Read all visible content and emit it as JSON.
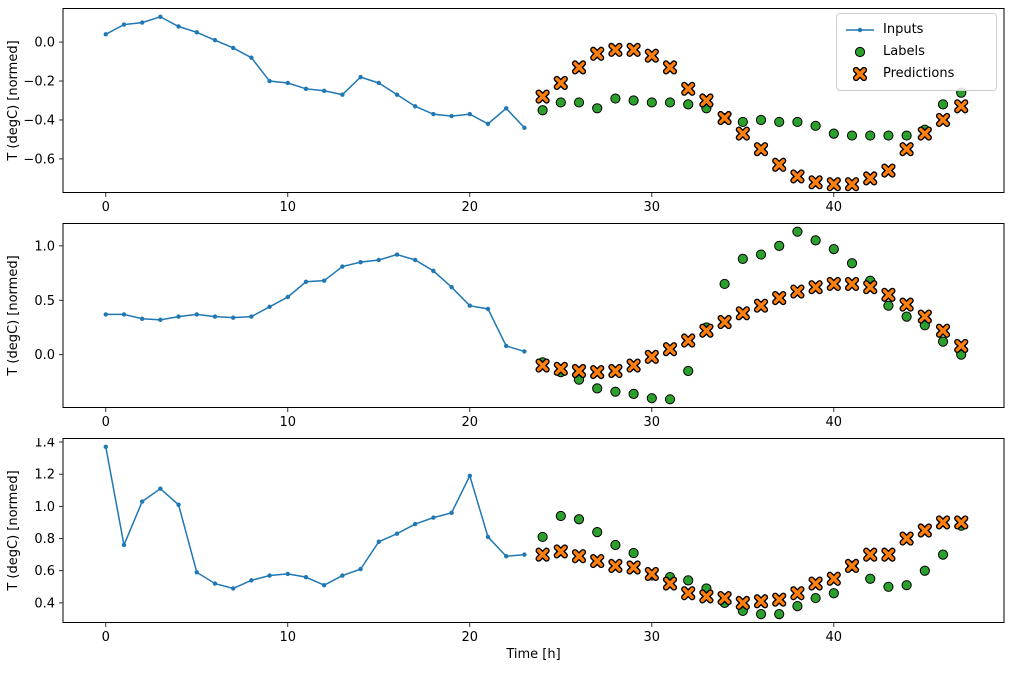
{
  "figure": {
    "background": "#ffffff",
    "xlabel": "Time [h]",
    "ylabel": "T (degC) [normed]",
    "legend": {
      "position": "upper right",
      "items": [
        {
          "label": "Inputs",
          "marker": "line-dot",
          "color": "#1f77b4"
        },
        {
          "label": "Labels",
          "marker": "circle",
          "color": "#2ca02c",
          "edge_color": "#000000"
        },
        {
          "label": "Predictions",
          "marker": "X",
          "color": "#ff7f0e",
          "edge_color": "#000000"
        }
      ]
    }
  },
  "chart_data": [
    {
      "type": "line",
      "title": "",
      "xlabel": "",
      "ylabel": "T (degC) [normed]",
      "xlim": [
        -2.35,
        49.35
      ],
      "ylim": [
        -0.775,
        0.175
      ],
      "xticks": [
        0,
        10,
        20,
        30,
        40
      ],
      "xticklabels": [
        "0",
        "10",
        "20",
        "30",
        "40"
      ],
      "yticks": [
        0.0,
        -0.2,
        -0.4,
        -0.6
      ],
      "yticklabels": [
        "0.0",
        "−0.2",
        "−0.4",
        "−0.6"
      ],
      "grid": false,
      "series": [
        {
          "name": "Inputs",
          "marker": "line-dot",
          "color": "#1f77b4",
          "x": [
            0,
            1,
            2,
            3,
            4,
            5,
            6,
            7,
            8,
            9,
            10,
            11,
            12,
            13,
            14,
            15,
            16,
            17,
            18,
            19,
            20,
            21,
            22,
            23
          ],
          "values": [
            0.04,
            0.09,
            0.1,
            0.13,
            0.08,
            0.05,
            0.01,
            -0.03,
            -0.08,
            -0.2,
            -0.21,
            -0.24,
            -0.25,
            -0.27,
            -0.18,
            -0.21,
            -0.27,
            -0.33,
            -0.37,
            -0.38,
            -0.37,
            -0.42,
            -0.34,
            -0.44
          ]
        },
        {
          "name": "Labels",
          "marker": "circle",
          "color": "#2ca02c",
          "x": [
            24,
            25,
            26,
            27,
            28,
            29,
            30,
            31,
            32,
            33,
            34,
            35,
            36,
            37,
            38,
            39,
            40,
            41,
            42,
            43,
            44,
            45,
            46,
            47
          ],
          "values": [
            -0.35,
            -0.31,
            -0.31,
            -0.34,
            -0.29,
            -0.3,
            -0.31,
            -0.31,
            -0.32,
            -0.34,
            -0.39,
            -0.41,
            -0.4,
            -0.41,
            -0.41,
            -0.43,
            -0.47,
            -0.48,
            -0.48,
            -0.48,
            -0.48,
            -0.45,
            -0.32,
            -0.26
          ]
        },
        {
          "name": "Predictions",
          "marker": "X",
          "color": "#ff7f0e",
          "x": [
            24,
            25,
            26,
            27,
            28,
            29,
            30,
            31,
            32,
            33,
            34,
            35,
            36,
            37,
            38,
            39,
            40,
            41,
            42,
            43,
            44,
            45,
            46,
            47
          ],
          "values": [
            -0.28,
            -0.21,
            -0.13,
            -0.06,
            -0.04,
            -0.04,
            -0.07,
            -0.13,
            -0.24,
            -0.3,
            -0.39,
            -0.47,
            -0.55,
            -0.63,
            -0.69,
            -0.72,
            -0.73,
            -0.73,
            -0.7,
            -0.66,
            -0.55,
            -0.47,
            -0.4,
            -0.33
          ]
        }
      ]
    },
    {
      "type": "line",
      "title": "",
      "xlabel": "",
      "ylabel": "T (degC) [normed]",
      "xlim": [
        -2.35,
        49.35
      ],
      "ylim": [
        -0.49,
        1.21
      ],
      "xticks": [
        0,
        10,
        20,
        30,
        40
      ],
      "xticklabels": [
        "0",
        "10",
        "20",
        "30",
        "40"
      ],
      "yticks": [
        0.0,
        0.5,
        1.0
      ],
      "yticklabels": [
        "0.0",
        "0.5",
        "1.0"
      ],
      "grid": false,
      "series": [
        {
          "name": "Inputs",
          "marker": "line-dot",
          "color": "#1f77b4",
          "x": [
            0,
            1,
            2,
            3,
            4,
            5,
            6,
            7,
            8,
            9,
            10,
            11,
            12,
            13,
            14,
            15,
            16,
            17,
            18,
            19,
            20,
            21,
            22,
            23
          ],
          "values": [
            0.37,
            0.37,
            0.33,
            0.32,
            0.35,
            0.37,
            0.35,
            0.34,
            0.35,
            0.44,
            0.53,
            0.67,
            0.68,
            0.81,
            0.85,
            0.87,
            0.92,
            0.87,
            0.77,
            0.62,
            0.45,
            0.42,
            0.08,
            0.03
          ]
        },
        {
          "name": "Labels",
          "marker": "circle",
          "color": "#2ca02c",
          "x": [
            24,
            25,
            26,
            27,
            28,
            29,
            30,
            31,
            32,
            33,
            34,
            35,
            36,
            37,
            38,
            39,
            40,
            41,
            42,
            43,
            44,
            45,
            46,
            47
          ],
          "values": [
            -0.07,
            -0.16,
            -0.23,
            -0.31,
            -0.34,
            -0.36,
            -0.4,
            -0.41,
            -0.15,
            0.25,
            0.65,
            0.88,
            0.92,
            1.0,
            1.13,
            1.05,
            0.97,
            0.84,
            0.68,
            0.45,
            0.35,
            0.27,
            0.12,
            0.0
          ]
        },
        {
          "name": "Predictions",
          "marker": "X",
          "color": "#ff7f0e",
          "x": [
            24,
            25,
            26,
            27,
            28,
            29,
            30,
            31,
            32,
            33,
            34,
            35,
            36,
            37,
            38,
            39,
            40,
            41,
            42,
            43,
            44,
            45,
            46,
            47
          ],
          "values": [
            -0.1,
            -0.13,
            -0.15,
            -0.16,
            -0.15,
            -0.1,
            -0.02,
            0.05,
            0.13,
            0.22,
            0.3,
            0.38,
            0.45,
            0.52,
            0.58,
            0.62,
            0.65,
            0.65,
            0.62,
            0.55,
            0.46,
            0.35,
            0.22,
            0.08
          ]
        }
      ]
    },
    {
      "type": "line",
      "title": "",
      "xlabel": "Time [h]",
      "ylabel": "T (degC) [normed]",
      "xlim": [
        -2.35,
        49.35
      ],
      "ylim": [
        0.275,
        1.425
      ],
      "xticks": [
        0,
        10,
        20,
        30,
        40
      ],
      "xticklabels": [
        "0",
        "10",
        "20",
        "30",
        "40"
      ],
      "yticks": [
        0.4,
        0.6,
        0.8,
        1.0,
        1.2,
        1.4
      ],
      "yticklabels": [
        "0.4",
        "0.6",
        "0.8",
        "1.0",
        "1.2",
        "1.4"
      ],
      "grid": false,
      "series": [
        {
          "name": "Inputs",
          "marker": "line-dot",
          "color": "#1f77b4",
          "x": [
            0,
            1,
            2,
            3,
            4,
            5,
            6,
            7,
            8,
            9,
            10,
            11,
            12,
            13,
            14,
            15,
            16,
            17,
            18,
            19,
            20,
            21,
            22,
            23
          ],
          "values": [
            1.37,
            0.76,
            1.03,
            1.11,
            1.01,
            0.59,
            0.52,
            0.49,
            0.54,
            0.57,
            0.58,
            0.56,
            0.51,
            0.57,
            0.61,
            0.78,
            0.83,
            0.89,
            0.93,
            0.96,
            1.19,
            0.81,
            0.69,
            0.7
          ]
        },
        {
          "name": "Labels",
          "marker": "circle",
          "color": "#2ca02c",
          "x": [
            24,
            25,
            26,
            27,
            28,
            29,
            30,
            31,
            32,
            33,
            34,
            35,
            36,
            37,
            38,
            39,
            40,
            41,
            42,
            43,
            44,
            45,
            46,
            47
          ],
          "values": [
            0.81,
            0.94,
            0.92,
            0.84,
            0.76,
            0.71,
            0.57,
            0.56,
            0.54,
            0.49,
            0.4,
            0.35,
            0.33,
            0.33,
            0.38,
            0.43,
            0.46,
            0.63,
            0.55,
            0.5,
            0.51,
            0.6,
            0.7,
            0.88
          ]
        },
        {
          "name": "Predictions",
          "marker": "X",
          "color": "#ff7f0e",
          "x": [
            24,
            25,
            26,
            27,
            28,
            29,
            30,
            31,
            32,
            33,
            34,
            35,
            36,
            37,
            38,
            39,
            40,
            41,
            42,
            43,
            44,
            45,
            46,
            47
          ],
          "values": [
            0.7,
            0.72,
            0.69,
            0.66,
            0.63,
            0.62,
            0.58,
            0.52,
            0.46,
            0.44,
            0.43,
            0.4,
            0.41,
            0.42,
            0.46,
            0.52,
            0.55,
            0.63,
            0.7,
            0.7,
            0.8,
            0.85,
            0.9,
            0.9
          ]
        }
      ]
    }
  ]
}
